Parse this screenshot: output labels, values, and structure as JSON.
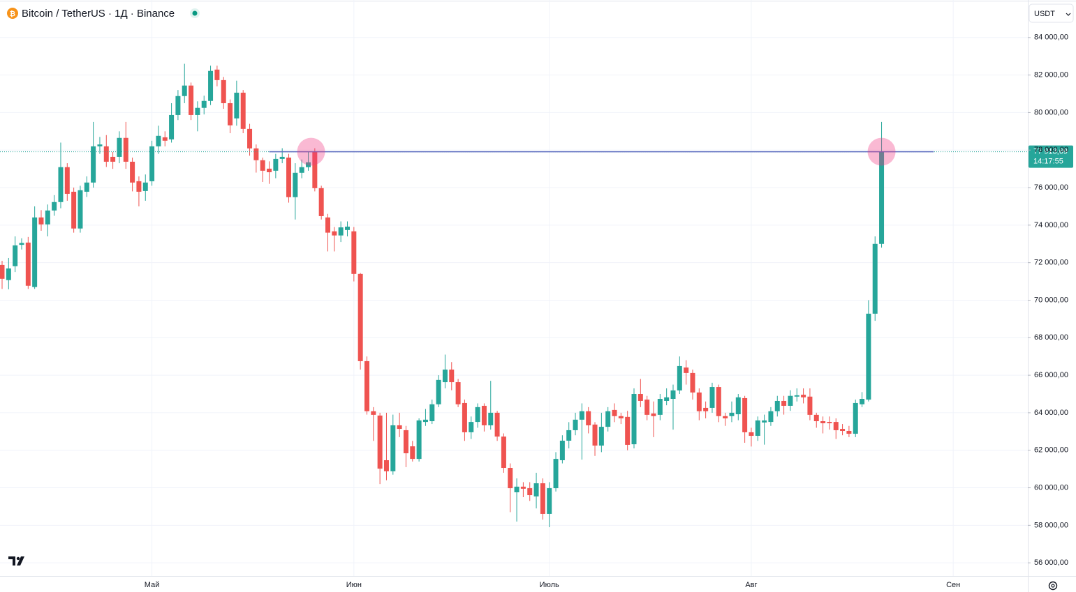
{
  "chart_data": {
    "type": "candlestick",
    "title": "Bitcoin / TetherUS · 1Д · Binance",
    "currency": "USDT",
    "up_color": "#26a69a",
    "down_color": "#ef5350",
    "grid": true,
    "ylim": [
      55300,
      86000
    ],
    "yticks": [
      {
        "value": 56000,
        "label": "56 000,00"
      },
      {
        "value": 58000,
        "label": "58 000,00"
      },
      {
        "value": 60000,
        "label": "60 000,00"
      },
      {
        "value": 62000,
        "label": "62 000,00"
      },
      {
        "value": 64000,
        "label": "64 000,00"
      },
      {
        "value": 66000,
        "label": "66 000,00"
      },
      {
        "value": 68000,
        "label": "68 000,00"
      },
      {
        "value": 70000,
        "label": "70 000,00"
      },
      {
        "value": 72000,
        "label": "72 000,00"
      },
      {
        "value": 74000,
        "label": "74 000,00"
      },
      {
        "value": 76000,
        "label": "76 000,00"
      },
      {
        "value": 78000,
        "label": "78 000,00"
      },
      {
        "value": 80000,
        "label": "80 000,00"
      },
      {
        "value": 82000,
        "label": "82 000,00"
      },
      {
        "value": 84000,
        "label": "84 000,00"
      }
    ],
    "last_price": {
      "value": 77913.69,
      "label": "77 913,69",
      "timer": "14:17:55"
    },
    "categories": [
      null,
      null,
      null,
      null,
      null,
      null,
      null,
      null,
      null,
      null,
      null,
      null,
      null,
      null,
      null,
      null,
      null,
      null,
      null,
      null,
      null,
      null,
      null,
      "Май",
      null,
      null,
      null,
      null,
      null,
      null,
      null,
      null,
      null,
      null,
      null,
      null,
      null,
      null,
      null,
      null,
      null,
      null,
      null,
      null,
      null,
      null,
      null,
      null,
      null,
      null,
      null,
      null,
      null,
      null,
      "Июн",
      null,
      null,
      null,
      null,
      null,
      null,
      null,
      null,
      null,
      null,
      null,
      null,
      null,
      null,
      null,
      null,
      null,
      null,
      null,
      null,
      null,
      null,
      null,
      null,
      null,
      null,
      null,
      null,
      null,
      "Июль",
      null,
      null,
      null,
      null,
      null,
      null,
      null,
      null,
      null,
      null,
      null,
      null,
      null,
      null,
      null,
      null,
      null,
      null,
      null,
      null,
      null,
      null,
      null,
      null,
      null,
      null,
      null,
      null,
      null,
      null,
      "Авг",
      null,
      null,
      null,
      null,
      null,
      null,
      null,
      null,
      null,
      null,
      null,
      null,
      null,
      null,
      null,
      null,
      null,
      null,
      null,
      null,
      null,
      null,
      null,
      null,
      null,
      null,
      null,
      null,
      null,
      null,
      "Сен"
    ],
    "values": [
      [
        71880,
        72100,
        70600,
        71140
      ],
      [
        71070,
        72250,
        70580,
        71690
      ],
      [
        71810,
        73400,
        71500,
        72920
      ],
      [
        72950,
        73300,
        72700,
        73050
      ],
      [
        73070,
        73370,
        70600,
        70770
      ],
      [
        70700,
        75000,
        70600,
        74410
      ],
      [
        74410,
        74800,
        73700,
        74040
      ],
      [
        74040,
        75100,
        73400,
        74780
      ],
      [
        74780,
        75600,
        74500,
        75230
      ],
      [
        75230,
        78400,
        74900,
        77090
      ],
      [
        77090,
        77300,
        75300,
        75670
      ],
      [
        75780,
        76000,
        73600,
        73820
      ],
      [
        73820,
        76100,
        73600,
        75860
      ],
      [
        75780,
        76600,
        75500,
        76270
      ],
      [
        76270,
        79500,
        76000,
        78200
      ],
      [
        78200,
        78700,
        77800,
        78300
      ],
      [
        78200,
        78800,
        77100,
        77380
      ],
      [
        77640,
        77900,
        77000,
        77380
      ],
      [
        77640,
        79000,
        77300,
        78650
      ],
      [
        78650,
        79500,
        77000,
        77380
      ],
      [
        77380,
        77600,
        75800,
        76270
      ],
      [
        76340,
        76600,
        75000,
        75780
      ],
      [
        75820,
        76700,
        75300,
        76270
      ],
      [
        76340,
        78500,
        76100,
        78200
      ],
      [
        78200,
        79300,
        77800,
        78760
      ],
      [
        78680,
        79000,
        78200,
        78500
      ],
      [
        78570,
        80500,
        78400,
        79870
      ],
      [
        79870,
        81200,
        79600,
        80880
      ],
      [
        80880,
        82600,
        80500,
        81440
      ],
      [
        81440,
        81600,
        79600,
        79870
      ],
      [
        79870,
        80600,
        79000,
        80250
      ],
      [
        80250,
        80900,
        79900,
        80620
      ],
      [
        80620,
        82500,
        80400,
        82220
      ],
      [
        82290,
        82500,
        81400,
        81730
      ],
      [
        81730,
        81900,
        80200,
        80500
      ],
      [
        80500,
        80700,
        78900,
        79320
      ],
      [
        79690,
        81700,
        79300,
        81060
      ],
      [
        81060,
        81200,
        78900,
        79130
      ],
      [
        79130,
        79400,
        77700,
        78090
      ],
      [
        78090,
        78300,
        76800,
        77460
      ],
      [
        77460,
        77600,
        76300,
        76900
      ],
      [
        77010,
        77400,
        76200,
        76820
      ],
      [
        76900,
        77800,
        76500,
        77530
      ],
      [
        77530,
        78100,
        77300,
        77640
      ],
      [
        77600,
        77800,
        75200,
        75490
      ],
      [
        75490,
        77300,
        74300,
        76790
      ],
      [
        76790,
        77500,
        76500,
        77090
      ],
      [
        77090,
        77900,
        76900,
        77350
      ],
      [
        77910,
        78100,
        75800,
        75970
      ],
      [
        75970,
        76100,
        74300,
        74480
      ],
      [
        74410,
        74600,
        72600,
        73600
      ],
      [
        73670,
        73900,
        72600,
        73450
      ],
      [
        73450,
        74200,
        73100,
        73880
      ],
      [
        73740,
        74200,
        73400,
        73920
      ],
      [
        73670,
        73900,
        71000,
        71400
      ],
      [
        71400,
        71450,
        66300,
        66750
      ],
      [
        66750,
        67000,
        63900,
        64080
      ],
      [
        64080,
        64300,
        62500,
        63890
      ],
      [
        63850,
        64000,
        60200,
        61020
      ],
      [
        61470,
        64000,
        60400,
        60880
      ],
      [
        60880,
        63900,
        60700,
        63330
      ],
      [
        63330,
        64000,
        62700,
        63140
      ],
      [
        63070,
        63300,
        61100,
        61840
      ],
      [
        62210,
        62500,
        61400,
        61540
      ],
      [
        61540,
        63700,
        61400,
        63590
      ],
      [
        63510,
        64200,
        63300,
        63630
      ],
      [
        63550,
        64700,
        63400,
        64450
      ],
      [
        64450,
        66000,
        64300,
        65750
      ],
      [
        65630,
        67100,
        65300,
        66300
      ],
      [
        66300,
        66700,
        65200,
        65630
      ],
      [
        65630,
        65800,
        64300,
        64450
      ],
      [
        64520,
        64700,
        62500,
        62960
      ],
      [
        62960,
        63800,
        62600,
        63510
      ],
      [
        63510,
        64500,
        63200,
        64300
      ],
      [
        64370,
        64500,
        63000,
        63330
      ],
      [
        63330,
        65700,
        63100,
        64000
      ],
      [
        64000,
        64100,
        62500,
        62730
      ],
      [
        62730,
        62900,
        60800,
        61060
      ],
      [
        61060,
        61300,
        58700,
        59980
      ],
      [
        59760,
        60500,
        58200,
        60060
      ],
      [
        60060,
        60300,
        59500,
        59950
      ],
      [
        59980,
        60300,
        59300,
        59610
      ],
      [
        59540,
        60800,
        58900,
        60240
      ],
      [
        60240,
        60500,
        58300,
        58610
      ],
      [
        58610,
        60300,
        57900,
        59980
      ],
      [
        59980,
        61900,
        59800,
        61540
      ],
      [
        61470,
        62800,
        61300,
        62510
      ],
      [
        62510,
        63500,
        62100,
        63070
      ],
      [
        63070,
        64000,
        62800,
        63630
      ],
      [
        63630,
        64500,
        61500,
        64080
      ],
      [
        64080,
        64300,
        62900,
        63330
      ],
      [
        63370,
        63500,
        61700,
        62250
      ],
      [
        62250,
        64000,
        61900,
        63250
      ],
      [
        63250,
        64300,
        63000,
        64080
      ],
      [
        64150,
        64500,
        63500,
        63820
      ],
      [
        63820,
        64000,
        63400,
        63700
      ],
      [
        63780,
        64100,
        62000,
        62290
      ],
      [
        62320,
        65300,
        62100,
        65000
      ],
      [
        65000,
        65800,
        64300,
        64630
      ],
      [
        64700,
        64900,
        63600,
        63890
      ],
      [
        63960,
        64600,
        62700,
        63820
      ],
      [
        63890,
        65000,
        63600,
        64740
      ],
      [
        64630,
        65300,
        64400,
        64820
      ],
      [
        64740,
        65500,
        63100,
        65190
      ],
      [
        65190,
        67000,
        65000,
        66490
      ],
      [
        66410,
        66800,
        65500,
        66120
      ],
      [
        66120,
        66300,
        64700,
        65080
      ],
      [
        65080,
        65300,
        63600,
        64080
      ],
      [
        64260,
        64600,
        63700,
        64080
      ],
      [
        64260,
        65600,
        64000,
        65370
      ],
      [
        65370,
        65500,
        63500,
        63820
      ],
      [
        63820,
        64000,
        63300,
        63700
      ],
      [
        63820,
        64600,
        63500,
        64000
      ],
      [
        63920,
        65000,
        63600,
        64820
      ],
      [
        64780,
        64900,
        62400,
        62960
      ],
      [
        62960,
        63200,
        62200,
        62770
      ],
      [
        62770,
        63800,
        62500,
        63590
      ],
      [
        63480,
        63900,
        62300,
        63590
      ],
      [
        63510,
        64300,
        63300,
        64080
      ],
      [
        64080,
        64900,
        63800,
        64630
      ],
      [
        64630,
        64900,
        63900,
        64370
      ],
      [
        64370,
        65200,
        64100,
        64900
      ],
      [
        64860,
        65300,
        64600,
        64930
      ],
      [
        64960,
        65300,
        64500,
        64820
      ],
      [
        64860,
        65300,
        63600,
        63890
      ],
      [
        63890,
        64000,
        63200,
        63550
      ],
      [
        63550,
        63800,
        62900,
        63440
      ],
      [
        63510,
        63800,
        63100,
        63440
      ],
      [
        63510,
        63700,
        62600,
        63070
      ],
      [
        63140,
        63400,
        62800,
        63030
      ],
      [
        63030,
        63300,
        62700,
        62880
      ],
      [
        62880,
        64700,
        62700,
        64520
      ],
      [
        64450,
        65100,
        64300,
        64740
      ],
      [
        64700,
        70000,
        64600,
        69280
      ],
      [
        69280,
        73400,
        68900,
        73000
      ],
      [
        73000,
        79500,
        72800,
        77913.69
      ],
      null,
      null,
      null,
      null,
      null,
      null,
      null,
      null,
      null,
      null,
      null
    ]
  }
}
